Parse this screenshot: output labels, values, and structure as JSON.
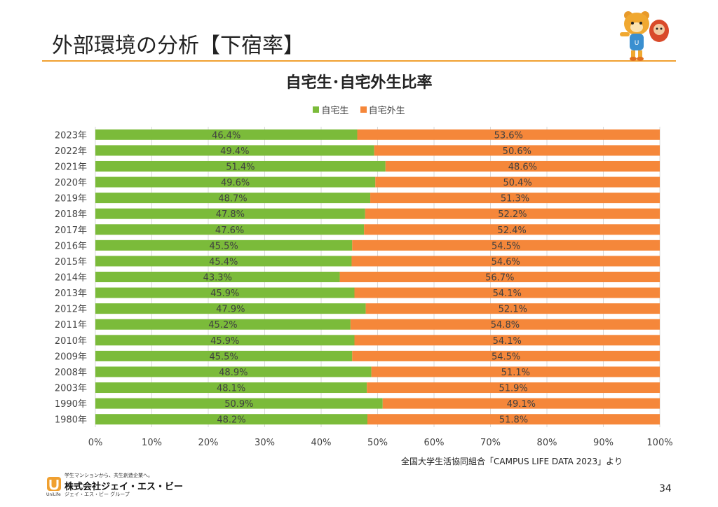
{
  "slide": {
    "title": "外部環境の分析【下宿率】",
    "source": "全国大学生活協同組合「CAMPUS LIFE DATA 2023」より",
    "page_number": "34"
  },
  "footer": {
    "tagline": "学生マンションから、共生創造企業へ。",
    "company": "株式会社ジェイ・エス・ビー",
    "group": "ジェイ・エス・ビー グループ",
    "brand": "UniLife"
  },
  "colors": {
    "accent": "#f0a030",
    "home": "#7bbb3a",
    "away": "#f5873a"
  },
  "chart_data": {
    "type": "bar",
    "orientation": "horizontal",
    "stacked": "percent",
    "title": "自宅生･自宅外生比率",
    "categories": [
      "2023年",
      "2022年",
      "2021年",
      "2020年",
      "2019年",
      "2018年",
      "2017年",
      "2016年",
      "2015年",
      "2014年",
      "2013年",
      "2012年",
      "2011年",
      "2010年",
      "2009年",
      "2008年",
      "2003年",
      "1990年",
      "1980年"
    ],
    "series": [
      {
        "name": "自宅生",
        "color": "#7bbb3a",
        "values": [
          46.4,
          49.4,
          51.4,
          49.6,
          48.7,
          47.8,
          47.6,
          45.5,
          45.4,
          43.3,
          45.9,
          47.9,
          45.2,
          45.9,
          45.5,
          48.9,
          48.1,
          50.9,
          48.2
        ]
      },
      {
        "name": "自宅外生",
        "color": "#f5873a",
        "values": [
          53.6,
          50.6,
          48.6,
          50.4,
          51.3,
          52.2,
          52.4,
          54.5,
          54.6,
          56.7,
          54.1,
          52.1,
          54.8,
          54.1,
          54.5,
          51.1,
          51.9,
          49.1,
          51.8
        ]
      }
    ],
    "xlim": [
      0,
      100
    ],
    "xticks": [
      "0%",
      "10%",
      "20%",
      "30%",
      "40%",
      "50%",
      "60%",
      "70%",
      "80%",
      "90%",
      "100%"
    ],
    "data_label_suffix": "%",
    "legend_position": "top",
    "grid": true
  }
}
